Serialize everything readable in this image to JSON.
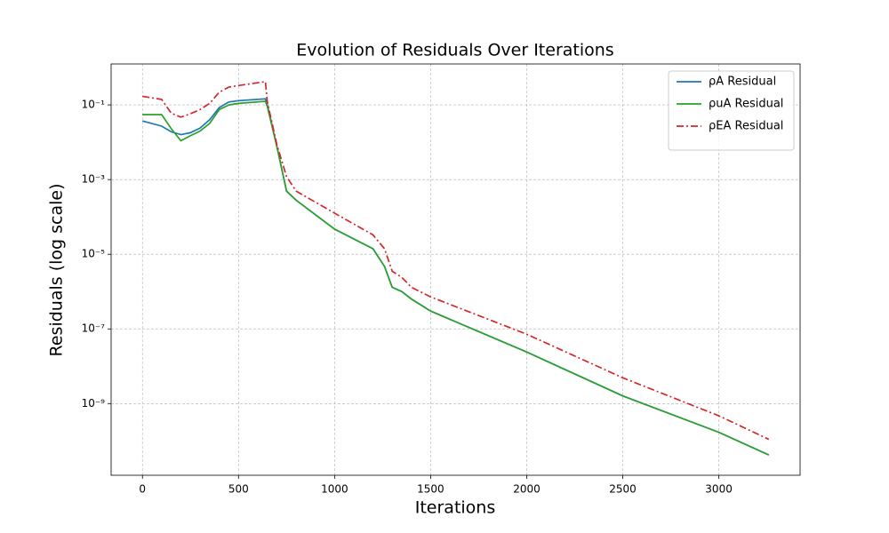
{
  "chart_data": {
    "type": "line",
    "title": "Evolution of Residuals Over Iterations",
    "x_label": "Iterations",
    "y_label": "Residuals (log scale)",
    "y_scale": "log",
    "grid": true,
    "legend": "upper right",
    "xlim": [
      -163,
      3423
    ],
    "ylim": [
      1.2e-11,
      1.25
    ],
    "xticks": [
      0,
      500,
      1000,
      1500,
      2000,
      2500,
      3000
    ],
    "yticks": [
      {
        "value": 0.1,
        "label": "10⁻¹"
      },
      {
        "value": 0.001,
        "label": "10⁻³"
      },
      {
        "value": 1e-05,
        "label": "10⁻⁵"
      },
      {
        "value": 1e-07,
        "label": "10⁻⁷"
      },
      {
        "value": 1e-09,
        "label": "10⁻⁹"
      }
    ],
    "x": [
      0,
      100,
      150,
      200,
      250,
      300,
      350,
      400,
      450,
      500,
      640,
      650,
      700,
      750,
      800,
      1000,
      1200,
      1260,
      1300,
      1350,
      1400,
      1500,
      2000,
      2500,
      3000,
      3260
    ],
    "series": [
      {
        "name": "ρA Residual",
        "color": "#1f77b4",
        "linestyle": "solid",
        "values": [
          0.037,
          0.027,
          0.019,
          0.016,
          0.018,
          0.024,
          0.04,
          0.085,
          0.12,
          0.13,
          0.145,
          0.1,
          0.0076,
          0.00049,
          0.00028,
          4.7e-05,
          1.4e-05,
          4.7e-06,
          1.3e-06,
          1e-06,
          6.3e-07,
          3e-07,
          2.4e-08,
          1.6e-09,
          1.7e-10,
          4.2e-11
        ]
      },
      {
        "name": "ρuA Residual",
        "color": "#2ca02c",
        "linestyle": "solid",
        "values": [
          0.055,
          0.055,
          0.023,
          0.011,
          0.015,
          0.02,
          0.032,
          0.075,
          0.1,
          0.11,
          0.125,
          0.09,
          0.0076,
          0.00049,
          0.00028,
          4.7e-05,
          1.4e-05,
          4.7e-06,
          1.3e-06,
          1e-06,
          6.3e-07,
          3e-07,
          2.4e-08,
          1.6e-09,
          1.7e-10,
          4.2e-11
        ]
      },
      {
        "name": "ρEA Residual",
        "color": "#d62728",
        "linestyle": "dashdot",
        "values": [
          0.17,
          0.14,
          0.06,
          0.047,
          0.058,
          0.075,
          0.11,
          0.22,
          0.3,
          0.33,
          0.42,
          0.12,
          0.0085,
          0.0012,
          0.00049,
          0.000126,
          3.3e-05,
          1.4e-05,
          3.5e-06,
          2.4e-06,
          1.3e-06,
          7.2e-07,
          7.2e-08,
          4.9e-09,
          4.7e-10,
          1.1e-10
        ]
      }
    ]
  }
}
